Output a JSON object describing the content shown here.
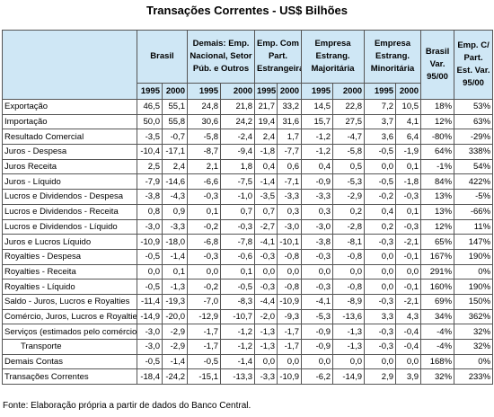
{
  "title": "Transações Correntes - US$ Bilhões",
  "header": {
    "groups": [
      "Brasil",
      "Demais: Emp. Nacional, Setor Púb. e Outros",
      "Emp. Com Part. Estrangeira",
      "Empresa Estrang. Majoritária",
      "Empresa Estrang. Minoritária"
    ],
    "var_columns": [
      "Brasil Var. 95/00",
      "Emp. C/ Part. Est. Var. 95/00"
    ],
    "years": [
      "1995",
      "2000"
    ]
  },
  "table": {
    "rows": [
      {
        "label": "Exportação",
        "values": [
          "46,5",
          "55,1",
          "24,8",
          "21,8",
          "21,7",
          "33,2",
          "14,5",
          "22,8",
          "7,2",
          "10,5",
          "18%",
          "53%"
        ]
      },
      {
        "label": "Importação",
        "values": [
          "50,0",
          "55,8",
          "30,6",
          "24,2",
          "19,4",
          "31,6",
          "15,7",
          "27,5",
          "3,7",
          "4,1",
          "12%",
          "63%"
        ]
      },
      {
        "label": "Resultado Comercial",
        "values": [
          "-3,5",
          "-0,7",
          "-5,8",
          "-2,4",
          "2,4",
          "1,7",
          "-1,2",
          "-4,7",
          "3,6",
          "6,4",
          "-80%",
          "-29%"
        ]
      },
      {
        "label": "Juros - Despesa",
        "values": [
          "-10,4",
          "-17,1",
          "-8,7",
          "-9,4",
          "-1,8",
          "-7,7",
          "-1,2",
          "-5,8",
          "-0,5",
          "-1,9",
          "64%",
          "338%"
        ]
      },
      {
        "label": "Juros Receita",
        "values": [
          "2,5",
          "2,4",
          "2,1",
          "1,8",
          "0,4",
          "0,6",
          "0,4",
          "0,5",
          "0,0",
          "0,1",
          "-1%",
          "54%"
        ]
      },
      {
        "label": "Juros - Líquido",
        "values": [
          "-7,9",
          "-14,6",
          "-6,6",
          "-7,5",
          "-1,4",
          "-7,1",
          "-0,9",
          "-5,3",
          "-0,5",
          "-1,8",
          "84%",
          "422%"
        ]
      },
      {
        "label": "Lucros e Dividendos - Despesa",
        "values": [
          "-3,8",
          "-4,3",
          "-0,3",
          "-1,0",
          "-3,5",
          "-3,3",
          "-3,3",
          "-2,9",
          "-0,2",
          "-0,3",
          "13%",
          "-5%"
        ]
      },
      {
        "label": "Lucros e Dividendos - Receita",
        "values": [
          "0,8",
          "0,9",
          "0,1",
          "0,7",
          "0,7",
          "0,3",
          "0,3",
          "0,2",
          "0,4",
          "0,1",
          "13%",
          "-66%"
        ]
      },
      {
        "label": "Lucros e Dividendos - Líquido",
        "values": [
          "-3,0",
          "-3,3",
          "-0,2",
          "-0,3",
          "-2,7",
          "-3,0",
          "-3,0",
          "-2,8",
          "0,2",
          "-0,3",
          "12%",
          "11%"
        ]
      },
      {
        "label": "Juros e Lucros Líquido",
        "values": [
          "-10,9",
          "-18,0",
          "-6,8",
          "-7,8",
          "-4,1",
          "-10,1",
          "-3,8",
          "-8,1",
          "-0,3",
          "-2,1",
          "65%",
          "147%"
        ]
      },
      {
        "label": "Royalties - Despesa",
        "values": [
          "-0,5",
          "-1,4",
          "-0,3",
          "-0,6",
          "-0,3",
          "-0,8",
          "-0,3",
          "-0,8",
          "0,0",
          "-0,1",
          "167%",
          "190%"
        ]
      },
      {
        "label": "Royalties - Receita",
        "values": [
          "0,0",
          "0,1",
          "0,0",
          "0,1",
          "0,0",
          "0,0",
          "0,0",
          "0,0",
          "0,0",
          "0,0",
          "291%",
          "0%"
        ]
      },
      {
        "label": "Royalties - Líquido",
        "values": [
          "-0,5",
          "-1,3",
          "-0,2",
          "-0,5",
          "-0,3",
          "-0,8",
          "-0,3",
          "-0,8",
          "0,0",
          "-0,1",
          "160%",
          "190%"
        ]
      },
      {
        "label": "Saldo - Juros, Lucros e Royalties",
        "values": [
          "-11,4",
          "-19,3",
          "-7,0",
          "-8,3",
          "-4,4",
          "-10,9",
          "-4,1",
          "-8,9",
          "-0,3",
          "-2,1",
          "69%",
          "150%"
        ]
      },
      {
        "label": "Comércio, Juros, Lucros e Royalties",
        "values": [
          "-14,9",
          "-20,0",
          "-12,9",
          "-10,7",
          "-2,0",
          "-9,3",
          "-5,3",
          "-13,6",
          "3,3",
          "4,3",
          "34%",
          "362%"
        ]
      },
      {
        "label": "Serviços (estimados pelo comércio)",
        "values": [
          "-3,0",
          "-2,9",
          "-1,7",
          "-1,2",
          "-1,3",
          "-1,7",
          "-0,9",
          "-1,3",
          "-0,3",
          "-0,4",
          "-4%",
          "32%"
        ]
      },
      {
        "label": "Transporte",
        "indent": true,
        "values": [
          "-3,0",
          "-2,9",
          "-1,7",
          "-1,2",
          "-1,3",
          "-1,7",
          "-0,9",
          "-1,3",
          "-0,3",
          "-0,4",
          "-4%",
          "32%"
        ]
      },
      {
        "label": "Demais Contas",
        "values": [
          "-0,5",
          "-1,4",
          "-0,5",
          "-1,4",
          "0,0",
          "0,0",
          "0,0",
          "0,0",
          "0,0",
          "0,0",
          "168%",
          "0%"
        ]
      },
      {
        "label": "Transações Correntes",
        "values": [
          "-18,4",
          "-24,2",
          "-15,1",
          "-13,3",
          "-3,3",
          "-10,9",
          "-6,2",
          "-14,9",
          "2,9",
          "3,9",
          "32%",
          "233%"
        ]
      }
    ]
  },
  "footer": "Fonte: Elaboração própria a partir de dados do Banco Central."
}
